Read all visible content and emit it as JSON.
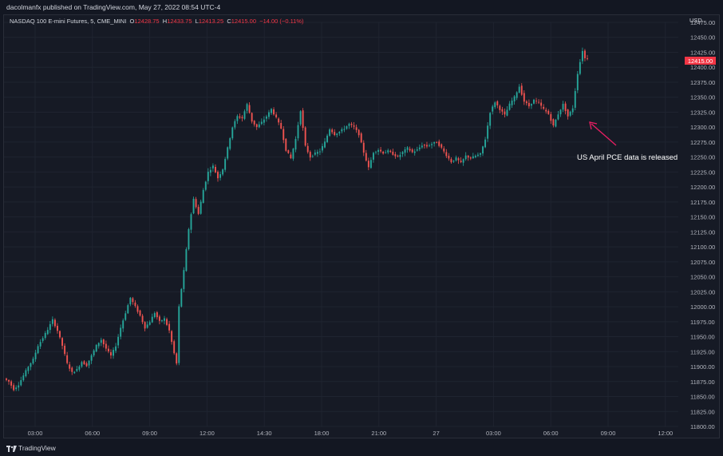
{
  "header": {
    "publisher": "dacolmanfx published on TradingView.com, May 27, 2022 08:54 UTC-4"
  },
  "legend": {
    "symbol": "NASDAQ 100 E-mini Futures, 5, CME_MINI",
    "open_label": "O",
    "open": "12428.75",
    "high_label": "H",
    "high": "12433.75",
    "low_label": "L",
    "low": "12413.25",
    "close_label": "C",
    "close": "12415.00",
    "change": "−14.00 (−0.11%)"
  },
  "currency": "USD",
  "price_tag": "12415.00",
  "annotation": "US April PCE data is released",
  "footer": {
    "brand": "TradingView"
  },
  "colors": {
    "up": "#26a69a",
    "down": "#ef5350",
    "tag": "#f23645",
    "arrow": "#e91e63",
    "grid": "#1f2430"
  },
  "chart_data": {
    "type": "candlestick",
    "title": "NASDAQ 100 E-mini Futures, 5, CME_MINI",
    "ylim": [
      11800,
      12475
    ],
    "y_ticks": [
      "11800.00",
      "11825.00",
      "11850.00",
      "11875.00",
      "11900.00",
      "11925.00",
      "11950.00",
      "11975.00",
      "12000.00",
      "12025.00",
      "12050.00",
      "12075.00",
      "12100.00",
      "12125.00",
      "12150.00",
      "12175.00",
      "12200.00",
      "12225.00",
      "12250.00",
      "12275.00",
      "12300.00",
      "12325.00",
      "12350.00",
      "12375.00",
      "12400.00",
      "12425.00",
      "12450.00",
      "12475.00"
    ],
    "x_ticks": [
      "03:00",
      "06:00",
      "09:00",
      "12:00",
      "14:30",
      "18:00",
      "21:00",
      "27",
      "03:00",
      "06:00",
      "09:00",
      "12:00"
    ],
    "price_path": [
      [
        0,
        11880
      ],
      [
        2,
        11875
      ],
      [
        4,
        11862
      ],
      [
        6,
        11870
      ],
      [
        8,
        11885
      ],
      [
        10,
        11900
      ],
      [
        12,
        11912
      ],
      [
        14,
        11935
      ],
      [
        16,
        11948
      ],
      [
        18,
        11962
      ],
      [
        20,
        11978
      ],
      [
        22,
        11960
      ],
      [
        24,
        11935
      ],
      [
        26,
        11905
      ],
      [
        28,
        11890
      ],
      [
        30,
        11895
      ],
      [
        32,
        11908
      ],
      [
        34,
        11902
      ],
      [
        36,
        11918
      ],
      [
        38,
        11935
      ],
      [
        40,
        11945
      ],
      [
        42,
        11930
      ],
      [
        44,
        11918
      ],
      [
        46,
        11935
      ],
      [
        48,
        11965
      ],
      [
        50,
        11990
      ],
      [
        52,
        12015
      ],
      [
        54,
        12000
      ],
      [
        56,
        11985
      ],
      [
        58,
        11965
      ],
      [
        60,
        11975
      ],
      [
        62,
        11990
      ],
      [
        64,
        11975
      ],
      [
        66,
        11980
      ],
      [
        68,
        11960
      ],
      [
        70,
        11922
      ],
      [
        71,
        11905
      ],
      [
        72,
        12000
      ],
      [
        74,
        12060
      ],
      [
        76,
        12130
      ],
      [
        78,
        12180
      ],
      [
        80,
        12155
      ],
      [
        82,
        12195
      ],
      [
        84,
        12225
      ],
      [
        86,
        12235
      ],
      [
        88,
        12215
      ],
      [
        90,
        12230
      ],
      [
        92,
        12265
      ],
      [
        94,
        12300
      ],
      [
        96,
        12318
      ],
      [
        98,
        12315
      ],
      [
        100,
        12338
      ],
      [
        102,
        12310
      ],
      [
        104,
        12300
      ],
      [
        106,
        12308
      ],
      [
        108,
        12318
      ],
      [
        110,
        12330
      ],
      [
        112,
        12315
      ],
      [
        114,
        12298
      ],
      [
        116,
        12262
      ],
      [
        118,
        12248
      ],
      [
        120,
        12280
      ],
      [
        122,
        12328
      ],
      [
        124,
        12268
      ],
      [
        126,
        12250
      ],
      [
        128,
        12256
      ],
      [
        130,
        12260
      ],
      [
        132,
        12275
      ],
      [
        134,
        12297
      ],
      [
        136,
        12288
      ],
      [
        138,
        12292
      ],
      [
        140,
        12298
      ],
      [
        142,
        12305
      ],
      [
        144,
        12300
      ],
      [
        146,
        12288
      ],
      [
        148,
        12258
      ],
      [
        150,
        12232
      ],
      [
        152,
        12258
      ],
      [
        154,
        12262
      ],
      [
        156,
        12257
      ],
      [
        158,
        12260
      ],
      [
        160,
        12255
      ],
      [
        162,
        12250
      ],
      [
        164,
        12258
      ],
      [
        166,
        12265
      ],
      [
        168,
        12258
      ],
      [
        170,
        12262
      ],
      [
        172,
        12270
      ],
      [
        174,
        12268
      ],
      [
        176,
        12272
      ],
      [
        178,
        12275
      ],
      [
        180,
        12265
      ],
      [
        182,
        12253
      ],
      [
        184,
        12242
      ],
      [
        186,
        12248
      ],
      [
        188,
        12240
      ],
      [
        190,
        12252
      ],
      [
        192,
        12248
      ],
      [
        194,
        12252
      ],
      [
        196,
        12255
      ],
      [
        198,
        12280
      ],
      [
        200,
        12325
      ],
      [
        202,
        12342
      ],
      [
        204,
        12330
      ],
      [
        206,
        12320
      ],
      [
        208,
        12338
      ],
      [
        210,
        12350
      ],
      [
        212,
        12368
      ],
      [
        214,
        12343
      ],
      [
        216,
        12335
      ],
      [
        218,
        12345
      ],
      [
        220,
        12340
      ],
      [
        222,
        12330
      ],
      [
        224,
        12322
      ],
      [
        226,
        12302
      ],
      [
        228,
        12322
      ],
      [
        230,
        12338
      ],
      [
        232,
        12318
      ],
      [
        234,
        12332
      ],
      [
        236,
        12390
      ],
      [
        238,
        12428
      ],
      [
        239,
        12415
      ]
    ]
  }
}
